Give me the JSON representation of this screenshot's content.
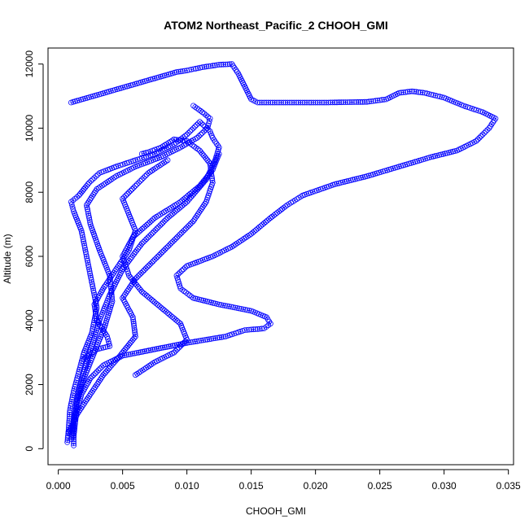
{
  "chart_data": {
    "type": "scatter",
    "title": "ATOM2 Northeast_Pacific_2 CHOOH_GMI",
    "xlabel": "CHOOH_GMI",
    "ylabel": "Altitude (m)",
    "xlim": [
      -0.0008,
      0.0354
    ],
    "ylim": [
      -500,
      12500
    ],
    "xticks": [
      0.0,
      0.005,
      0.01,
      0.015,
      0.02,
      0.025,
      0.03,
      0.035
    ],
    "xtick_labels": [
      "0.000",
      "0.005",
      "0.010",
      "0.015",
      "0.020",
      "0.025",
      "0.030",
      "0.035"
    ],
    "yticks": [
      0,
      2000,
      4000,
      6000,
      8000,
      10000,
      12000
    ],
    "ytick_labels": [
      "0",
      "2000",
      "4000",
      "6000",
      "8000",
      "10000",
      "12000"
    ],
    "marker": "open-circle",
    "series_color": "#0000ff",
    "line_style": "dashed-connecting",
    "grid": false,
    "legend": false,
    "series": [
      {
        "values": [
          [
            0.0007,
            200
          ],
          [
            0.0008,
            600
          ],
          [
            0.0009,
            1200
          ],
          [
            0.0012,
            1800
          ],
          [
            0.0016,
            2400
          ],
          [
            0.002,
            3000
          ],
          [
            0.0026,
            3600
          ],
          [
            0.003,
            4400
          ],
          [
            0.0026,
            5200
          ],
          [
            0.0022,
            6000
          ],
          [
            0.0018,
            6800
          ],
          [
            0.0012,
            7400
          ],
          [
            0.001,
            7700
          ],
          [
            0.0016,
            7900
          ],
          [
            0.0024,
            8300
          ],
          [
            0.0032,
            8600
          ],
          [
            0.0045,
            8800
          ],
          [
            0.006,
            9000
          ],
          [
            0.0075,
            9200
          ],
          [
            0.009,
            9500
          ],
          [
            0.01,
            9800
          ],
          [
            0.011,
            10200
          ],
          [
            0.0118,
            9900
          ],
          [
            0.012,
            9700
          ],
          [
            0.0125,
            9400
          ],
          [
            0.0122,
            9000
          ],
          [
            0.0115,
            8400
          ],
          [
            0.01,
            7700
          ],
          [
            0.0085,
            7200
          ],
          [
            0.0065,
            6400
          ],
          [
            0.005,
            5600
          ],
          [
            0.004,
            4800
          ],
          [
            0.0032,
            4000
          ],
          [
            0.0026,
            3200
          ],
          [
            0.002,
            2400
          ],
          [
            0.0015,
            1600
          ],
          [
            0.0012,
            800
          ],
          [
            0.0012,
            100
          ]
        ]
      },
      {
        "values": [
          [
            0.001,
            300
          ],
          [
            0.0012,
            900
          ],
          [
            0.0015,
            1500
          ],
          [
            0.002,
            2200
          ],
          [
            0.0028,
            3000
          ],
          [
            0.0036,
            3800
          ],
          [
            0.0042,
            4600
          ],
          [
            0.004,
            5400
          ],
          [
            0.0032,
            6200
          ],
          [
            0.0025,
            7000
          ],
          [
            0.0022,
            7600
          ],
          [
            0.003,
            8100
          ],
          [
            0.0045,
            8500
          ],
          [
            0.006,
            8800
          ],
          [
            0.008,
            9100
          ],
          [
            0.0095,
            9400
          ],
          [
            0.0108,
            9700
          ],
          [
            0.0116,
            10000
          ],
          [
            0.0118,
            10300
          ],
          [
            0.0112,
            10500
          ],
          [
            0.0105,
            10700
          ]
        ]
      },
      {
        "values": [
          [
            0.001,
            10800
          ],
          [
            0.0092,
            11750
          ],
          [
            0.01,
            11800
          ],
          [
            0.0112,
            11900
          ],
          [
            0.0125,
            11980
          ],
          [
            0.0135,
            12000
          ],
          [
            0.014,
            11700
          ],
          [
            0.0145,
            11300
          ],
          [
            0.015,
            10900
          ],
          [
            0.0155,
            10800
          ],
          [
            0.018,
            10800
          ],
          [
            0.021,
            10800
          ],
          [
            0.024,
            10820
          ],
          [
            0.0255,
            10900
          ],
          [
            0.0265,
            11100
          ],
          [
            0.0275,
            11150
          ],
          [
            0.0285,
            11100
          ],
          [
            0.03,
            10950
          ],
          [
            0.0315,
            10700
          ],
          [
            0.033,
            10500
          ],
          [
            0.034,
            10300
          ],
          [
            0.0335,
            10000
          ],
          [
            0.0325,
            9600
          ],
          [
            0.031,
            9300
          ],
          [
            0.029,
            9100
          ],
          [
            0.0265,
            8800
          ],
          [
            0.024,
            8500
          ],
          [
            0.0215,
            8250
          ],
          [
            0.019,
            7900
          ],
          [
            0.0178,
            7600
          ],
          [
            0.0165,
            7200
          ],
          [
            0.015,
            6700
          ],
          [
            0.0135,
            6300
          ],
          [
            0.012,
            6000
          ],
          [
            0.01,
            5700
          ],
          [
            0.0092,
            5400
          ],
          [
            0.0095,
            5000
          ],
          [
            0.0105,
            4700
          ],
          [
            0.0125,
            4500
          ],
          [
            0.015,
            4300
          ],
          [
            0.0162,
            4100
          ],
          [
            0.0165,
            3900
          ],
          [
            0.016,
            3750
          ],
          [
            0.0145,
            3700
          ],
          [
            0.013,
            3500
          ],
          [
            0.01,
            3300
          ],
          [
            0.0075,
            3100
          ],
          [
            0.005,
            2900
          ],
          [
            0.0035,
            2600
          ],
          [
            0.0025,
            2200
          ],
          [
            0.0018,
            1700
          ],
          [
            0.0014,
            1100
          ],
          [
            0.0012,
            400
          ]
        ]
      },
      {
        "values": [
          [
            0.0008,
            500
          ],
          [
            0.0015,
            1100
          ],
          [
            0.0025,
            1700
          ],
          [
            0.0035,
            2300
          ],
          [
            0.0048,
            2900
          ],
          [
            0.006,
            3500
          ],
          [
            0.0058,
            4100
          ],
          [
            0.005,
            4700
          ],
          [
            0.006,
            5300
          ],
          [
            0.0075,
            5900
          ],
          [
            0.009,
            6500
          ],
          [
            0.0105,
            7100
          ],
          [
            0.0115,
            7700
          ],
          [
            0.012,
            8300
          ],
          [
            0.0118,
            8900
          ],
          [
            0.011,
            9300
          ],
          [
            0.01,
            9600
          ],
          [
            0.009,
            9650
          ],
          [
            0.008,
            9400
          ],
          [
            0.007,
            9250
          ],
          [
            0.0065,
            9200
          ]
        ]
      },
      {
        "values": [
          [
            0.002,
            2800
          ],
          [
            0.003,
            3100
          ],
          [
            0.004,
            3200
          ],
          [
            0.0038,
            3500
          ],
          [
            0.003,
            4000
          ],
          [
            0.0028,
            4500
          ],
          [
            0.0035,
            5000
          ],
          [
            0.0045,
            5600
          ],
          [
            0.0055,
            6200
          ],
          [
            0.006,
            6800
          ],
          [
            0.0055,
            7300
          ],
          [
            0.005,
            7800
          ],
          [
            0.006,
            8200
          ],
          [
            0.007,
            8600
          ],
          [
            0.0085,
            9000
          ]
        ]
      },
      {
        "values": [
          [
            0.006,
            2300
          ],
          [
            0.0075,
            2700
          ],
          [
            0.009,
            3000
          ],
          [
            0.01,
            3400
          ],
          [
            0.0095,
            3900
          ],
          [
            0.008,
            4400
          ],
          [
            0.0065,
            4900
          ],
          [
            0.0055,
            5400
          ],
          [
            0.005,
            6000
          ],
          [
            0.0058,
            6600
          ],
          [
            0.0075,
            7200
          ],
          [
            0.0095,
            7700
          ],
          [
            0.011,
            8200
          ],
          [
            0.012,
            8700
          ],
          [
            0.0125,
            9200
          ]
        ]
      }
    ]
  }
}
